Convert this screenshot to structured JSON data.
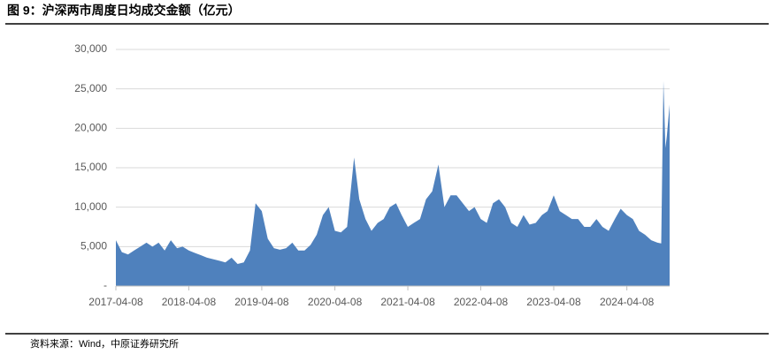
{
  "chart_data": {
    "type": "area",
    "title": "图 9：沪深两市周度日均成交金额（亿元）",
    "source": "资料来源：Wind，中原证券研究所",
    "color": "#4f81bd",
    "grid": true,
    "x": [
      "2017-04-08",
      "2017-05-08",
      "2017-06-08",
      "2017-07-08",
      "2017-08-08",
      "2017-09-08",
      "2017-10-08",
      "2017-11-08",
      "2017-12-08",
      "2018-01-08",
      "2018-02-08",
      "2018-03-08",
      "2018-04-08",
      "2018-05-08",
      "2018-06-08",
      "2018-07-08",
      "2018-08-08",
      "2018-09-08",
      "2018-10-08",
      "2018-11-08",
      "2018-12-08",
      "2019-01-08",
      "2019-02-08",
      "2019-03-08",
      "2019-04-08",
      "2019-05-08",
      "2019-06-08",
      "2019-07-08",
      "2019-08-08",
      "2019-09-08",
      "2019-10-08",
      "2019-11-08",
      "2019-12-08",
      "2020-01-08",
      "2020-02-08",
      "2020-03-08",
      "2020-04-08",
      "2020-05-08",
      "2020-06-08",
      "2020-07-13",
      "2020-08-08",
      "2020-09-08",
      "2020-10-08",
      "2020-11-08",
      "2020-12-08",
      "2021-01-08",
      "2021-02-08",
      "2021-03-08",
      "2021-04-08",
      "2021-05-08",
      "2021-06-08",
      "2021-07-08",
      "2021-08-08",
      "2021-09-08",
      "2021-10-08",
      "2021-11-08",
      "2021-12-08",
      "2022-01-08",
      "2022-02-08",
      "2022-03-08",
      "2022-04-08",
      "2022-05-08",
      "2022-06-08",
      "2022-07-08",
      "2022-08-08",
      "2022-09-08",
      "2022-10-08",
      "2022-11-08",
      "2022-12-08",
      "2023-01-08",
      "2023-02-08",
      "2023-03-08",
      "2023-04-08",
      "2023-05-08",
      "2023-06-08",
      "2023-07-08",
      "2023-08-08",
      "2023-09-08",
      "2023-10-08",
      "2023-11-08",
      "2023-12-08",
      "2024-01-08",
      "2024-02-08",
      "2024-03-08",
      "2024-04-08",
      "2024-05-08",
      "2024-06-08",
      "2024-07-08",
      "2024-08-08",
      "2024-09-08",
      "2024-09-27",
      "2024-10-08",
      "2024-10-18",
      "2024-10-25",
      "2024-11-08"
    ],
    "values": [
      5800,
      4300,
      4000,
      4500,
      5000,
      5500,
      5000,
      5500,
      4500,
      5800,
      4800,
      5000,
      4500,
      4200,
      3900,
      3600,
      3400,
      3200,
      3000,
      3600,
      2800,
      3000,
      4500,
      10500,
      9500,
      6000,
      4800,
      4600,
      4800,
      5500,
      4500,
      4500,
      5200,
      6500,
      9000,
      10000,
      7000,
      6800,
      7500,
      16300,
      11000,
      8500,
      7000,
      8000,
      8500,
      10000,
      10500,
      9000,
      7500,
      8000,
      8500,
      11000,
      12000,
      15400,
      10000,
      11500,
      11500,
      10500,
      9500,
      10000,
      8500,
      8000,
      10500,
      11000,
      10000,
      8000,
      7500,
      9000,
      7800,
      8000,
      9000,
      9500,
      11500,
      9500,
      9000,
      8500,
      8500,
      7500,
      7500,
      8500,
      7500,
      7000,
      8500,
      9800,
      9000,
      8500,
      7000,
      6500,
      5800,
      5500,
      5400,
      26000,
      17500,
      19000,
      23000
    ],
    "xlim": [
      "2017-04-08",
      "2024-11-08"
    ],
    "xticks": [
      "2017-04-08",
      "2018-04-08",
      "2019-04-08",
      "2020-04-08",
      "2021-04-08",
      "2022-04-08",
      "2023-04-08",
      "2024-04-08"
    ],
    "ylim": [
      0,
      30000
    ],
    "yticks": [
      {
        "value": 0,
        "label": "-"
      },
      {
        "value": 5000,
        "label": "5,000"
      },
      {
        "value": 10000,
        "label": "10,000"
      },
      {
        "value": 15000,
        "label": "15,000"
      },
      {
        "value": 20000,
        "label": "20,000"
      },
      {
        "value": 25000,
        "label": "25,000"
      },
      {
        "value": 30000,
        "label": "30,000"
      }
    ]
  }
}
